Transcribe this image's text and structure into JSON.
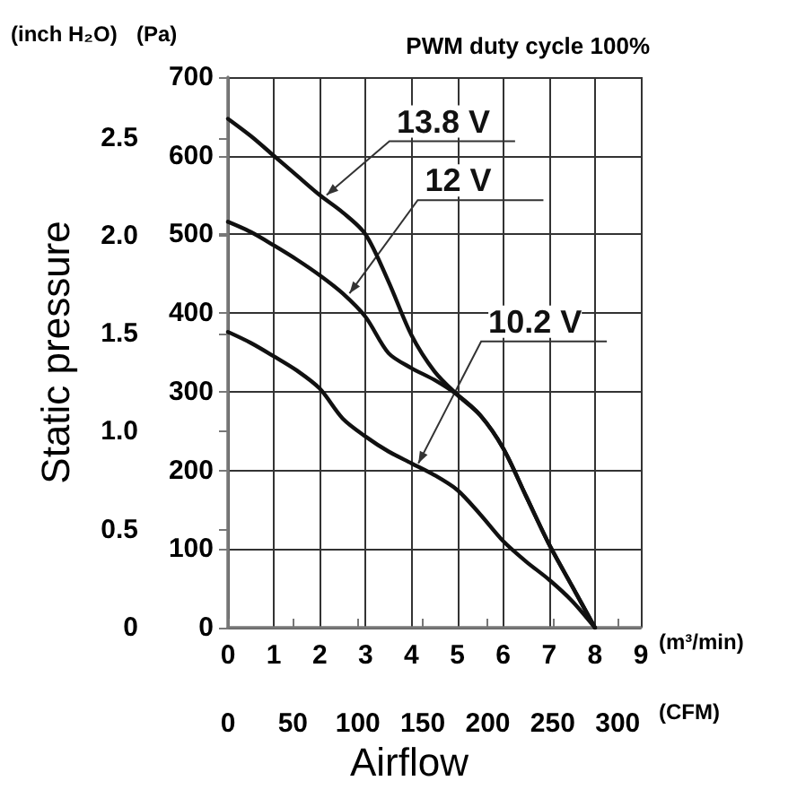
{
  "chart_data": {
    "type": "line",
    "title": "PWM duty cycle 100%",
    "xlabel": "Airflow",
    "y2label": "Static pressure",
    "annotations": [
      "(inch H₂O)",
      "(Pa)",
      "(m³/min)",
      "(CFM)"
    ],
    "x": [
      0,
      0.5,
      1,
      1.5,
      2,
      2.5,
      3,
      3.5,
      4,
      4.5,
      5,
      5.5,
      6,
      6.5,
      7,
      7.5,
      8
    ],
    "series": [
      {
        "name": "13.8 V",
        "color": "#111111",
        "values": [
          647,
          625,
          600,
          575,
          550,
          528,
          500,
          440,
          372,
          326,
          296,
          270,
          228,
          167,
          106,
          53,
          0
        ]
      },
      {
        "name": "12 V",
        "color": "#111111",
        "values": [
          516,
          503,
          486,
          468,
          448,
          425,
          395,
          349,
          330,
          315,
          296,
          270,
          228,
          167,
          106,
          53,
          0
        ]
      },
      {
        "name": "10.2 V",
        "color": "#111111",
        "values": [
          376,
          362,
          345,
          327,
          304,
          266,
          243,
          224,
          209,
          194,
          175,
          144,
          110,
          84,
          61,
          34,
          0
        ]
      }
    ],
    "xlim": [
      0,
      9
    ],
    "xticks": [
      0,
      1,
      2,
      3,
      4,
      5,
      6,
      7,
      8,
      9
    ],
    "ylim": [
      0,
      700
    ],
    "yticks": [
      0,
      100,
      200,
      300,
      400,
      500,
      600,
      700
    ],
    "y2lim": [
      0,
      2.81
    ],
    "y2ticks": [
      0,
      {
        "value": 0.5,
        "label": "0.5"
      },
      {
        "value": 1,
        "label": "1.0"
      },
      {
        "value": 1.5,
        "label": "1.5"
      },
      {
        "value": 2,
        "label": "2.0"
      },
      {
        "value": 2.5,
        "label": "2.5"
      }
    ],
    "x2lim": [
      0,
      317.8
    ],
    "x2ticks": [
      0,
      50,
      100,
      150,
      200,
      250,
      300
    ],
    "grid": true,
    "legend": false,
    "marker": "none",
    "line_style": "solid"
  }
}
